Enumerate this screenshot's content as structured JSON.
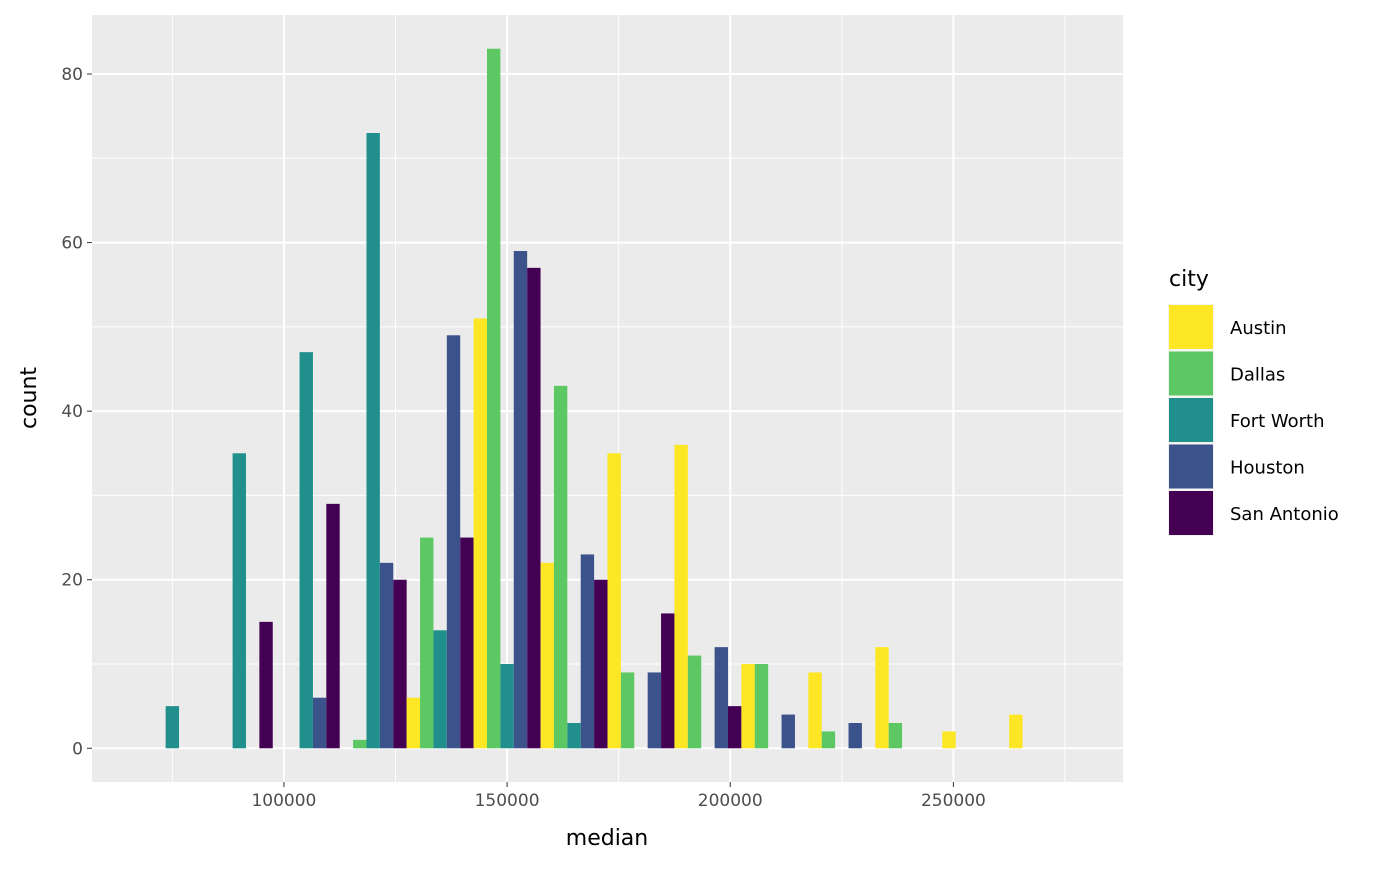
{
  "chart_data": {
    "type": "bar",
    "subtype": "histogram-dodged",
    "xlabel": "median",
    "ylabel": "count",
    "bin_centers": [
      75000,
      90000,
      105000,
      120000,
      135000,
      150000,
      165000,
      180000,
      195000,
      210000,
      225000,
      240000,
      255000,
      270000
    ],
    "bin_width": 15000,
    "xlim": [
      57000,
      288000
    ],
    "ylim": [
      -4,
      87
    ],
    "x_ticks": [
      100000,
      150000,
      200000,
      250000
    ],
    "x_tick_labels": [
      "100000",
      "150000",
      "200000",
      "250000"
    ],
    "y_ticks": [
      0,
      20,
      40,
      60,
      80
    ],
    "y_tick_labels": [
      "0",
      "20",
      "40",
      "60",
      "80"
    ],
    "grid": true,
    "legend": {
      "title": "city",
      "placement": "right"
    },
    "series": [
      {
        "name": "Austin",
        "color": "#FDE725",
        "values": [
          0,
          0,
          0,
          0,
          6,
          51,
          22,
          35,
          36,
          10,
          9,
          12,
          2,
          4
        ]
      },
      {
        "name": "Dallas",
        "color": "#5DC863",
        "values": [
          0,
          0,
          0,
          1,
          25,
          83,
          43,
          9,
          11,
          10,
          2,
          3,
          0,
          0
        ]
      },
      {
        "name": "Fort Worth",
        "color": "#21908C",
        "values": [
          5,
          35,
          47,
          73,
          14,
          10,
          3,
          0,
          0,
          0,
          0,
          0,
          0,
          0
        ]
      },
      {
        "name": "Houston",
        "color": "#3B528B",
        "values": [
          0,
          0,
          6,
          22,
          49,
          59,
          23,
          9,
          12,
          4,
          3,
          0,
          0,
          0
        ]
      },
      {
        "name": "San Antonio",
        "color": "#440154",
        "values": [
          0,
          15,
          29,
          20,
          25,
          57,
          20,
          16,
          5,
          0,
          0,
          0,
          0,
          0
        ]
      }
    ]
  }
}
